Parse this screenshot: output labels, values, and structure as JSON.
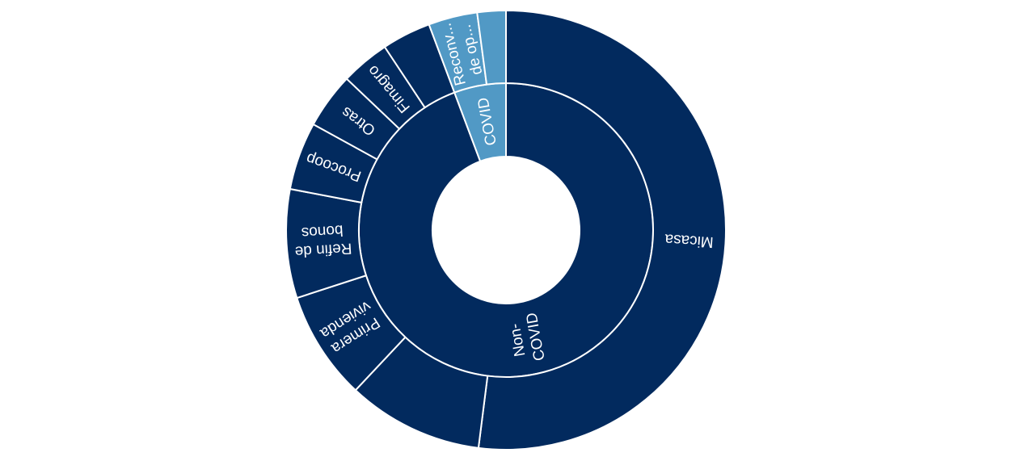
{
  "chart_data": {
    "type": "sunburst",
    "colors": {
      "non_covid": "#022a5e",
      "covid": "#5199c5",
      "divider": "#ffffff",
      "background": "#ffffff"
    },
    "inner_ring": [
      {
        "name": "Non-COVID",
        "label_lines": [
          "Non-",
          "COVID"
        ],
        "value": 94.3,
        "color": "#022a5e"
      },
      {
        "name": "COVID",
        "label_lines": [
          "COVID"
        ],
        "value": 5.7,
        "color": "#5199c5"
      }
    ],
    "outer_ring": [
      {
        "parent": "Non-COVID",
        "name": "Micasa",
        "label_lines": [
          "Micasa"
        ],
        "value": 52.0,
        "color": "#022a5e"
      },
      {
        "parent": "Non-COVID",
        "name": "",
        "label_lines": [],
        "value": 10.0,
        "color": "#022a5e"
      },
      {
        "parent": "Non-COVID",
        "name": "Primera vivienda",
        "label_lines": [
          "Primera",
          "vivienda"
        ],
        "value": 8.0,
        "color": "#022a5e"
      },
      {
        "parent": "Non-COVID",
        "name": "Refin de bonos",
        "label_lines": [
          "Refin de",
          "bonos"
        ],
        "value": 8.0,
        "color": "#022a5e"
      },
      {
        "parent": "Non-COVID",
        "name": "Procoop",
        "label_lines": [
          "Procoop"
        ],
        "value": 5.0,
        "color": "#022a5e"
      },
      {
        "parent": "Non-COVID",
        "name": "Otras",
        "label_lines": [
          "Otras"
        ],
        "value": 4.1,
        "color": "#022a5e"
      },
      {
        "parent": "Non-COVID",
        "name": "Fimagro",
        "label_lines": [
          "Fimagro"
        ],
        "value": 3.6,
        "color": "#022a5e"
      },
      {
        "parent": "Non-COVID",
        "name": "",
        "label_lines": [],
        "value": 3.6,
        "color": "#022a5e"
      },
      {
        "parent": "COVID",
        "name": "Reconv... de op...",
        "label_lines": [
          "Reconv...",
          "de op..."
        ],
        "value": 3.6,
        "color": "#5199c5"
      },
      {
        "parent": "COVID",
        "name": "",
        "label_lines": [],
        "value": 2.1,
        "color": "#5199c5"
      }
    ]
  }
}
